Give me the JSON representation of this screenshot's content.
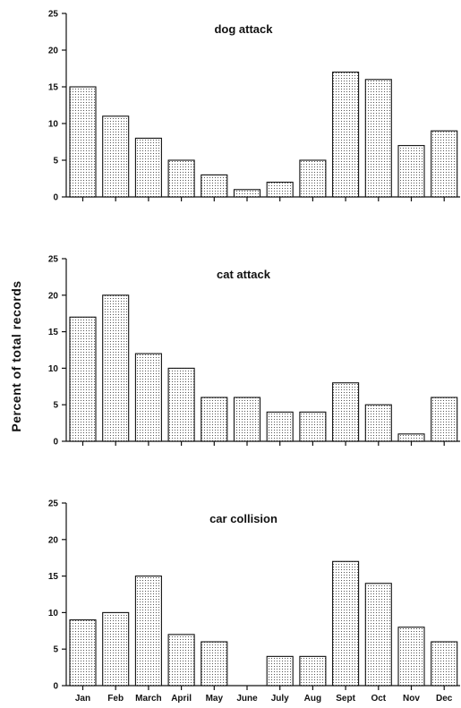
{
  "chart_data": {
    "type": "bar",
    "ylabel": "Percent of total records",
    "ylim": [
      0,
      25
    ],
    "yticks": [
      0,
      5,
      10,
      15,
      20,
      25
    ],
    "categories": [
      "Jan",
      "Feb",
      "March",
      "April",
      "May",
      "June",
      "July",
      "Aug",
      "Sept",
      "Oct",
      "Nov",
      "Dec"
    ],
    "panels": [
      {
        "title": "dog attack",
        "values": [
          15,
          11,
          8,
          5,
          3,
          1,
          2,
          5,
          17,
          16,
          7,
          9
        ]
      },
      {
        "title": "cat attack",
        "values": [
          17,
          20,
          12,
          10,
          6,
          6,
          4,
          4,
          8,
          5,
          1,
          6
        ]
      },
      {
        "title": "car collision",
        "values": [
          9,
          10,
          15,
          7,
          6,
          0,
          4,
          4,
          17,
          14,
          8,
          6
        ]
      }
    ],
    "colors": {
      "bar_stroke": "#111111",
      "bar_pattern": "#555555",
      "background": "#ffffff"
    }
  }
}
